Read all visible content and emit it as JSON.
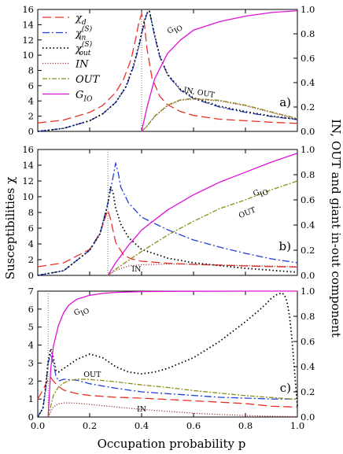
{
  "figure": {
    "ylabel_left": "Susceptibilities χ",
    "ylabel_right": "IN, OUT and giant in-out component",
    "xlabel": "Occupation probability p"
  },
  "colors": {
    "chi_d": "#e8302a",
    "chi_in": "#1f3fd8",
    "chi_out": "#000000",
    "IN": "#9a2d2d",
    "OUT": "#8c8c1a",
    "G_IO": "#e011d6"
  },
  "chart_data": [
    {
      "type": "line",
      "panel_label": "a)",
      "xlim": [
        0,
        1
      ],
      "ylim": [
        0,
        16
      ],
      "ylim_right": [
        0,
        1
      ],
      "x_ticks": [
        "0.0",
        "0.2",
        "0.4",
        "0.6",
        "0.8",
        "1.0"
      ],
      "y_ticks": [
        "0",
        "2",
        "4",
        "6",
        "8",
        "10",
        "12",
        "14",
        "16"
      ],
      "y_ticks_right": [
        "0.0",
        "0.2",
        "0.4",
        "0.6",
        "0.8",
        "1.0"
      ],
      "critical_p": 0.4,
      "legend": {
        "position": "top-left",
        "entries": [
          {
            "key": "chi_d",
            "label": "χd"
          },
          {
            "key": "chi_in",
            "label": "χin(S)"
          },
          {
            "key": "chi_out",
            "label": "χout(S)"
          },
          {
            "key": "IN",
            "label": "IN"
          },
          {
            "key": "OUT",
            "label": "OUT"
          },
          {
            "key": "G_IO",
            "label": "GIO"
          }
        ]
      },
      "annotations": [
        {
          "text": "GIO",
          "x": 0.53,
          "y": 0.83,
          "axis": "right",
          "angle": -32
        },
        {
          "text": "IN, OUT",
          "x": 0.62,
          "y": 0.3,
          "axis": "right",
          "angle": 10
        }
      ],
      "series": [
        {
          "key": "chi_d",
          "axis": "left",
          "x": [
            0,
            0.1,
            0.2,
            0.25,
            0.3,
            0.33,
            0.36,
            0.38,
            0.39,
            0.4,
            0.41,
            0.42,
            0.44,
            0.47,
            0.5,
            0.55,
            0.6,
            0.7,
            0.8,
            0.9,
            1.0
          ],
          "y": [
            1.1,
            1.5,
            2.5,
            3.4,
            5.1,
            6.8,
            9.5,
            12.6,
            14.4,
            15.4,
            14.4,
            11.0,
            7.0,
            4.6,
            3.5,
            2.6,
            2.1,
            1.6,
            1.4,
            1.2,
            1.05
          ]
        },
        {
          "key": "chi_in",
          "axis": "left",
          "x": [
            0,
            0.1,
            0.2,
            0.25,
            0.3,
            0.34,
            0.37,
            0.39,
            0.41,
            0.42,
            0.43,
            0.45,
            0.47,
            0.5,
            0.55,
            0.6,
            0.7,
            0.8,
            0.9,
            1.0
          ],
          "y": [
            0,
            0.4,
            1.4,
            2.3,
            3.8,
            5.8,
            8.6,
            11.2,
            14.2,
            15.4,
            15.8,
            12.5,
            9.8,
            7.4,
            5.4,
            4.3,
            3.2,
            2.5,
            1.95,
            1.55
          ]
        },
        {
          "key": "chi_out",
          "axis": "left",
          "x": [
            0,
            0.1,
            0.2,
            0.25,
            0.3,
            0.34,
            0.37,
            0.39,
            0.41,
            0.42,
            0.43,
            0.45,
            0.47,
            0.5,
            0.55,
            0.6,
            0.7,
            0.8,
            0.9,
            1.0
          ],
          "y": [
            0,
            0.4,
            1.4,
            2.3,
            3.8,
            5.9,
            8.8,
            11.4,
            14.4,
            15.5,
            15.8,
            12.7,
            9.9,
            7.5,
            5.5,
            4.4,
            3.3,
            2.6,
            2.0,
            1.6
          ]
        },
        {
          "key": "IN",
          "axis": "right",
          "x": [
            0.4,
            0.42,
            0.45,
            0.5,
            0.55,
            0.6,
            0.7,
            0.8,
            0.9,
            1.0
          ],
          "y": [
            0,
            0.04,
            0.12,
            0.21,
            0.255,
            0.265,
            0.25,
            0.21,
            0.155,
            0.1
          ]
        },
        {
          "key": "OUT",
          "axis": "right",
          "x": [
            0.4,
            0.42,
            0.45,
            0.5,
            0.55,
            0.6,
            0.7,
            0.8,
            0.9,
            1.0
          ],
          "y": [
            0,
            0.04,
            0.125,
            0.215,
            0.26,
            0.27,
            0.255,
            0.215,
            0.16,
            0.105
          ]
        },
        {
          "key": "G_IO",
          "axis": "right",
          "x": [
            0.4,
            0.42,
            0.45,
            0.5,
            0.55,
            0.6,
            0.7,
            0.8,
            0.9,
            1.0
          ],
          "y": [
            0,
            0.19,
            0.43,
            0.64,
            0.75,
            0.83,
            0.9,
            0.945,
            0.975,
            0.99
          ]
        }
      ]
    },
    {
      "type": "line",
      "panel_label": "b)",
      "xlim": [
        0,
        1
      ],
      "ylim": [
        0,
        16
      ],
      "ylim_right": [
        0,
        1
      ],
      "x_ticks": [
        "0.0",
        "0.2",
        "0.4",
        "0.6",
        "0.8",
        "1.0"
      ],
      "y_ticks": [
        "0",
        "2",
        "4",
        "6",
        "8",
        "10",
        "12",
        "14",
        "16"
      ],
      "y_ticks_right": [
        "0.0",
        "0.2",
        "0.4",
        "0.6",
        "0.8",
        "1.0"
      ],
      "critical_p": 0.27,
      "annotations": [
        {
          "text": "GIO",
          "x": 0.86,
          "y": 0.65,
          "axis": "right",
          "angle": -22
        },
        {
          "text": "OUT",
          "x": 0.81,
          "y": 0.48,
          "axis": "right",
          "angle": -22
        },
        {
          "text": "IN",
          "x": 0.38,
          "y": 0.03,
          "axis": "right",
          "angle": 0
        }
      ],
      "series": [
        {
          "key": "chi_d",
          "axis": "left",
          "x": [
            0,
            0.1,
            0.2,
            0.24,
            0.26,
            0.27,
            0.28,
            0.3,
            0.33,
            0.36,
            0.4,
            0.5,
            0.6,
            0.8,
            1.0
          ],
          "y": [
            1.1,
            1.6,
            3.3,
            5.4,
            7.4,
            8.3,
            7.2,
            4.2,
            2.6,
            2.1,
            1.8,
            1.55,
            1.4,
            1.2,
            1.05
          ]
        },
        {
          "key": "chi_in",
          "axis": "left",
          "x": [
            0,
            0.1,
            0.2,
            0.24,
            0.27,
            0.29,
            0.3,
            0.31,
            0.32,
            0.35,
            0.4,
            0.5,
            0.6,
            0.7,
            0.8,
            0.9,
            1.0
          ],
          "y": [
            0,
            0.6,
            3.2,
            5.3,
            9.2,
            12.5,
            14.3,
            13.0,
            11.2,
            9.2,
            7.4,
            5.8,
            4.5,
            3.6,
            2.8,
            2.1,
            1.6
          ]
        },
        {
          "key": "chi_out",
          "axis": "left",
          "x": [
            0,
            0.1,
            0.2,
            0.24,
            0.27,
            0.28,
            0.29,
            0.3,
            0.32,
            0.35,
            0.4,
            0.5,
            0.6,
            0.8,
            1.0
          ],
          "y": [
            0,
            0.6,
            3.2,
            5.3,
            9.0,
            11.3,
            10.5,
            8.6,
            6.5,
            4.8,
            3.3,
            2.2,
            1.6,
            0.9,
            0.4
          ]
        },
        {
          "key": "IN",
          "axis": "right",
          "x": [
            0.27,
            0.3,
            0.35,
            0.4,
            0.5,
            0.6,
            0.7,
            0.8,
            0.9,
            1.0
          ],
          "y": [
            0,
            0.04,
            0.075,
            0.085,
            0.09,
            0.088,
            0.083,
            0.078,
            0.074,
            0.07
          ]
        },
        {
          "key": "OUT",
          "axis": "right",
          "x": [
            0.27,
            0.3,
            0.35,
            0.4,
            0.5,
            0.6,
            0.7,
            0.8,
            0.9,
            1.0
          ],
          "y": [
            0,
            0.05,
            0.12,
            0.19,
            0.32,
            0.43,
            0.53,
            0.6,
            0.68,
            0.75
          ]
        },
        {
          "key": "G_IO",
          "axis": "right",
          "x": [
            0.27,
            0.3,
            0.35,
            0.4,
            0.5,
            0.6,
            0.7,
            0.8,
            0.9,
            1.0
          ],
          "y": [
            0,
            0.1,
            0.24,
            0.36,
            0.52,
            0.64,
            0.74,
            0.82,
            0.9,
            0.97
          ]
        }
      ]
    },
    {
      "type": "line",
      "panel_label": "c)",
      "xlim": [
        0,
        1
      ],
      "ylim": [
        0,
        7
      ],
      "ylim_right": [
        0,
        1
      ],
      "x_ticks": [
        "0.0",
        "0.2",
        "0.4",
        "0.6",
        "0.8",
        "1.0"
      ],
      "y_ticks": [
        "0",
        "1",
        "2",
        "3",
        "4",
        "5",
        "6",
        "7"
      ],
      "y_ticks_right": [
        "0.0",
        "0.2",
        "0.4",
        "0.6",
        "0.8",
        "1.0"
      ],
      "critical_p": 0.04,
      "annotations": [
        {
          "text": "GIO",
          "x": 0.17,
          "y": 0.83,
          "axis": "right",
          "angle": -25
        },
        {
          "text": "OUT",
          "x": 0.21,
          "y": 0.32,
          "axis": "right",
          "angle": 0
        },
        {
          "text": "IN",
          "x": 0.4,
          "y": 0.045,
          "axis": "right",
          "angle": 0
        }
      ],
      "series": [
        {
          "key": "chi_d",
          "axis": "left",
          "x": [
            0,
            0.02,
            0.04,
            0.05,
            0.06,
            0.08,
            0.1,
            0.15,
            0.2,
            0.3,
            0.4,
            0.6,
            0.8,
            0.9,
            1.0
          ],
          "y": [
            1.0,
            1.5,
            2.1,
            2.2,
            2.0,
            1.7,
            1.5,
            1.3,
            1.2,
            1.1,
            1.05,
            0.9,
            0.75,
            0.6,
            0.55
          ]
        },
        {
          "key": "chi_in",
          "axis": "left",
          "x": [
            0,
            0.02,
            0.03,
            0.04,
            0.05,
            0.06,
            0.07,
            0.08,
            0.1,
            0.15,
            0.2,
            0.3,
            0.4,
            0.5,
            0.6,
            0.7,
            0.8,
            0.9,
            1.0
          ],
          "y": [
            0,
            0.5,
            1.5,
            3.0,
            3.5,
            3.0,
            2.3,
            2.0,
            2.1,
            2.05,
            1.85,
            1.6,
            1.4,
            1.3,
            1.2,
            1.1,
            1.05,
            1.0,
            1.0
          ]
        },
        {
          "key": "chi_out",
          "axis": "left",
          "x": [
            0,
            0.02,
            0.03,
            0.04,
            0.05,
            0.06,
            0.07,
            0.08,
            0.1,
            0.15,
            0.2,
            0.25,
            0.3,
            0.35,
            0.4,
            0.45,
            0.5,
            0.6,
            0.7,
            0.8,
            0.85,
            0.88,
            0.9,
            0.92,
            0.94,
            0.95,
            0.96,
            0.97,
            0.98,
            0.99,
            1.0
          ],
          "y": [
            0,
            0.5,
            1.6,
            3.1,
            3.8,
            3.3,
            2.6,
            2.5,
            2.7,
            3.2,
            3.5,
            3.3,
            2.8,
            2.5,
            2.4,
            2.5,
            2.7,
            3.3,
            4.2,
            5.3,
            5.9,
            6.3,
            6.6,
            6.8,
            6.9,
            6.8,
            6.4,
            5.6,
            4.2,
            2.4,
            0.6
          ]
        },
        {
          "key": "IN",
          "axis": "right",
          "x": [
            0.04,
            0.06,
            0.08,
            0.1,
            0.12,
            0.15,
            0.2,
            0.3,
            0.4,
            0.5,
            0.6,
            0.7,
            0.8,
            0.9,
            1.0
          ],
          "y": [
            0,
            0.08,
            0.105,
            0.112,
            0.112,
            0.11,
            0.1,
            0.08,
            0.06,
            0.045,
            0.03,
            0.02,
            0.012,
            0.006,
            0.003
          ]
        },
        {
          "key": "OUT",
          "axis": "right",
          "x": [
            0.04,
            0.06,
            0.08,
            0.1,
            0.12,
            0.15,
            0.18,
            0.2,
            0.25,
            0.3,
            0.4,
            0.5,
            0.6,
            0.7,
            0.8,
            0.9,
            1.0
          ],
          "y": [
            0,
            0.17,
            0.24,
            0.27,
            0.29,
            0.3,
            0.3,
            0.298,
            0.29,
            0.28,
            0.255,
            0.235,
            0.21,
            0.19,
            0.17,
            0.155,
            0.14
          ]
        },
        {
          "key": "G_IO",
          "axis": "right",
          "x": [
            0.04,
            0.05,
            0.06,
            0.08,
            0.1,
            0.12,
            0.15,
            0.2,
            0.25,
            0.3,
            0.4,
            0.5,
            0.6,
            0.8,
            1.0
          ],
          "y": [
            0,
            0.38,
            0.56,
            0.73,
            0.83,
            0.89,
            0.935,
            0.967,
            0.982,
            0.99,
            0.996,
            0.998,
            0.999,
            1.0,
            1.0
          ]
        }
      ]
    }
  ]
}
